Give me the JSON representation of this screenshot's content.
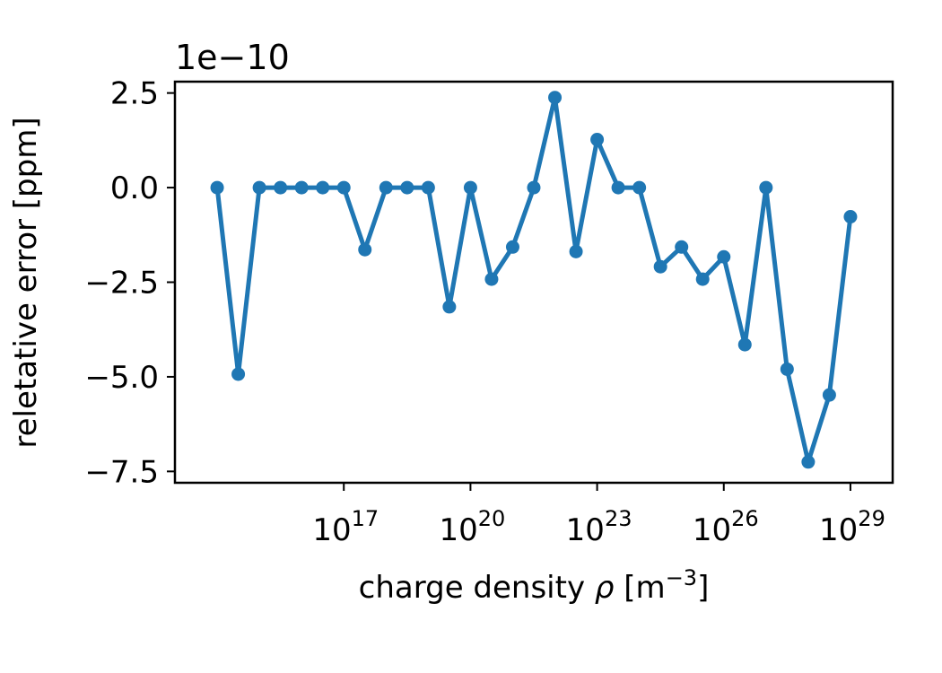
{
  "chart_data": {
    "type": "line",
    "title": "",
    "xlabel": "charge density ρ [m⁻³]",
    "xlabel_parts": {
      "main": "charge density ",
      "symbol": "ρ",
      "unit_open": " [m",
      "unit_sup": "−3",
      "unit_close": "]"
    },
    "ylabel": "reletative error [ppm]",
    "y_offset_label": "1e−10",
    "x_scale": "log",
    "xlim": [
      10000000000000.0,
      1e+30
    ],
    "ylim": [
      -7.8e-10,
      2.8e-10
    ],
    "grid": false,
    "legend": "none",
    "x_ticks": [
      {
        "value": 1e+17,
        "base": "10",
        "exp": "17"
      },
      {
        "value": 1e+20,
        "base": "10",
        "exp": "20"
      },
      {
        "value": 1e+23,
        "base": "10",
        "exp": "23"
      },
      {
        "value": 1e+26,
        "base": "10",
        "exp": "26"
      },
      {
        "value": 1e+29,
        "base": "10",
        "exp": "29"
      }
    ],
    "y_ticks": [
      {
        "value": 2.5e-10,
        "label": "2.5"
      },
      {
        "value": 0,
        "label": "0.0"
      },
      {
        "value": -2.5e-10,
        "label": "−2.5"
      },
      {
        "value": -5e-10,
        "label": "−5.0"
      },
      {
        "value": -7.5e-10,
        "label": "−7.5"
      }
    ],
    "series": [
      {
        "color": "#1f77b4",
        "marker": "circle",
        "x": [
          100000000000000.0,
          316000000000000.0,
          1000000000000000.0,
          3160000000000000.0,
          1e+16,
          3.16e+16,
          1e+17,
          3.16e+17,
          1e+18,
          3.16e+18,
          1e+19,
          3.16e+19,
          1e+20,
          3.16e+20,
          1e+21,
          3.16e+21,
          1e+22,
          3.16e+22,
          1e+23,
          3.16e+23,
          1e+24,
          3.16e+24,
          1e+25,
          3.16e+25,
          1e+26,
          3.16e+26,
          1e+27,
          3.16e+27,
          1e+28,
          3.16e+28,
          1e+29
        ],
        "y": [
          0,
          -4.93e-10,
          0,
          0,
          0,
          0,
          0,
          -1.64e-10,
          0,
          0,
          0,
          -3.15e-10,
          0,
          -2.42e-10,
          -1.57e-10,
          0,
          2.38e-10,
          -1.69e-10,
          1.27e-10,
          0,
          0,
          -2.09e-10,
          -1.57e-10,
          -2.42e-10,
          -1.83e-10,
          -4.15e-10,
          0,
          -4.8e-10,
          -7.25e-10,
          -5.48e-10,
          -7.7e-11
        ]
      }
    ]
  }
}
